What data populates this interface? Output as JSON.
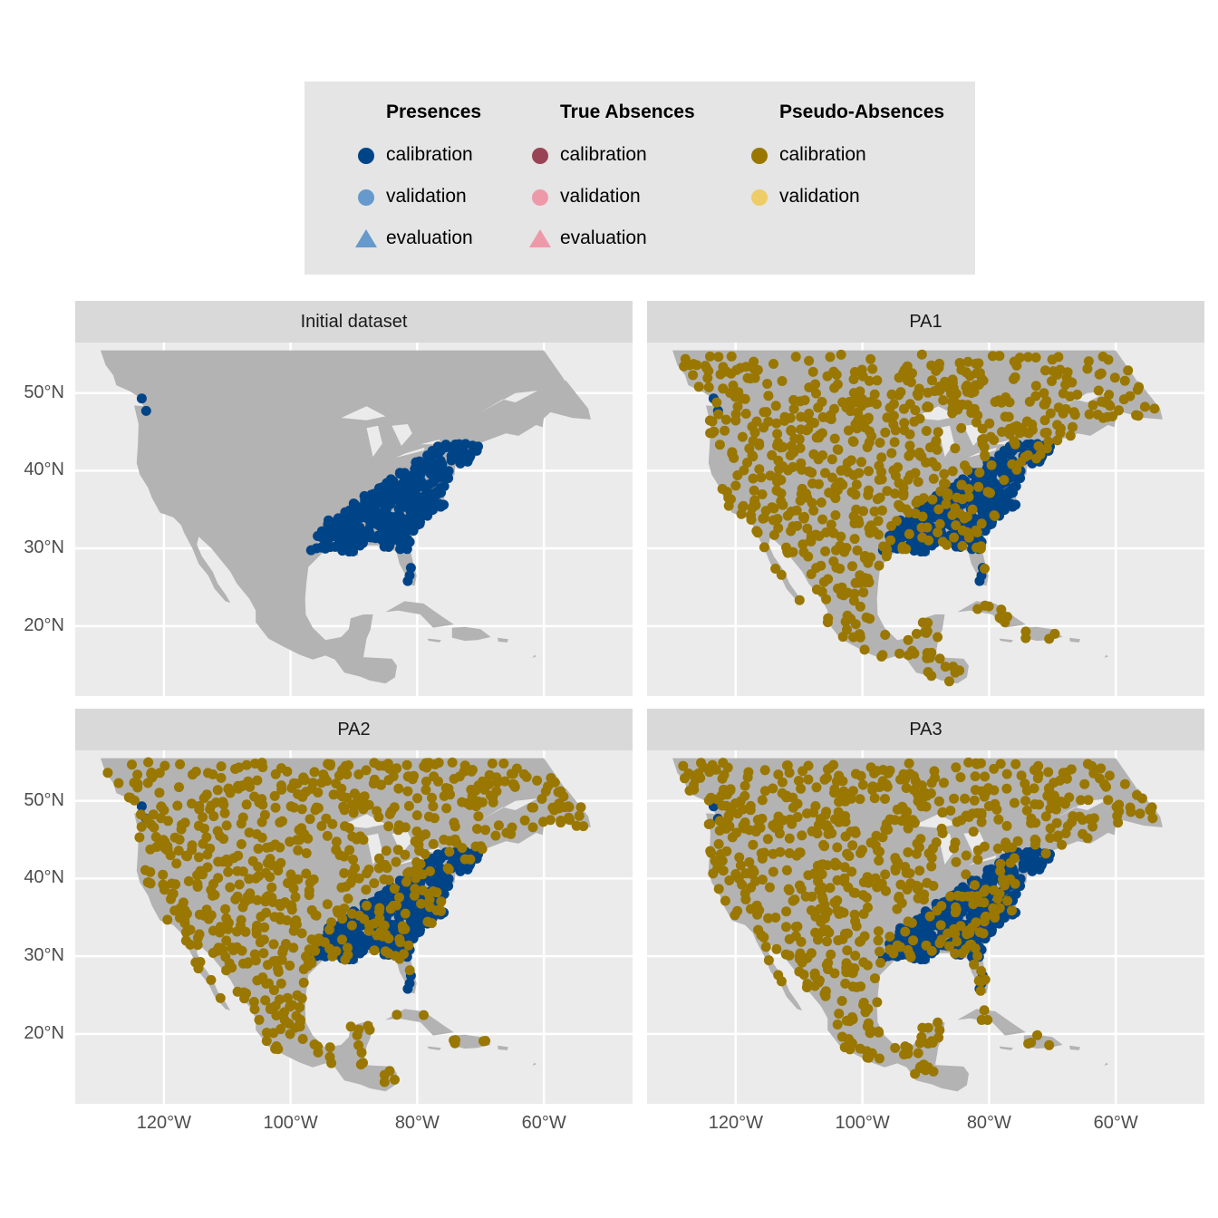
{
  "legend": {
    "groups": [
      {
        "title": "Presences",
        "items": [
          {
            "label": "calibration",
            "shape": "circle",
            "color": "#004488"
          },
          {
            "label": "validation",
            "shape": "circle",
            "color": "#6699cc"
          },
          {
            "label": "evaluation",
            "shape": "triangle",
            "color": "#6699cc"
          }
        ]
      },
      {
        "title": "True Absences",
        "items": [
          {
            "label": "calibration",
            "shape": "circle",
            "color": "#994455"
          },
          {
            "label": "validation",
            "shape": "circle",
            "color": "#ee99aa"
          },
          {
            "label": "evaluation",
            "shape": "triangle",
            "color": "#ee99aa"
          }
        ]
      },
      {
        "title": "Pseudo-Absences",
        "items": [
          {
            "label": "calibration",
            "shape": "circle",
            "color": "#997700"
          },
          {
            "label": "validation",
            "shape": "circle",
            "color": "#eecc66"
          }
        ]
      }
    ]
  },
  "panels": [
    {
      "title": "Initial dataset",
      "show_pseudo_absences": false
    },
    {
      "title": "PA1",
      "show_pseudo_absences": true
    },
    {
      "title": "PA2",
      "show_pseudo_absences": true
    },
    {
      "title": "PA3",
      "show_pseudo_absences": true
    }
  ],
  "axes": {
    "x_ticks": [
      "120°W",
      "100°W",
      "80°W",
      "60°W"
    ],
    "y_ticks": [
      "50°N",
      "40°N",
      "30°N",
      "20°N"
    ],
    "x_range_lon": [
      -134,
      -46
    ],
    "y_range_lat": [
      11,
      56.5
    ]
  },
  "colors": {
    "panel_bg": "#ebebeb",
    "land": "#b3b3b3",
    "grid": "#ffffff",
    "presence": "#004488",
    "pseudo_absence": "#997700"
  }
}
